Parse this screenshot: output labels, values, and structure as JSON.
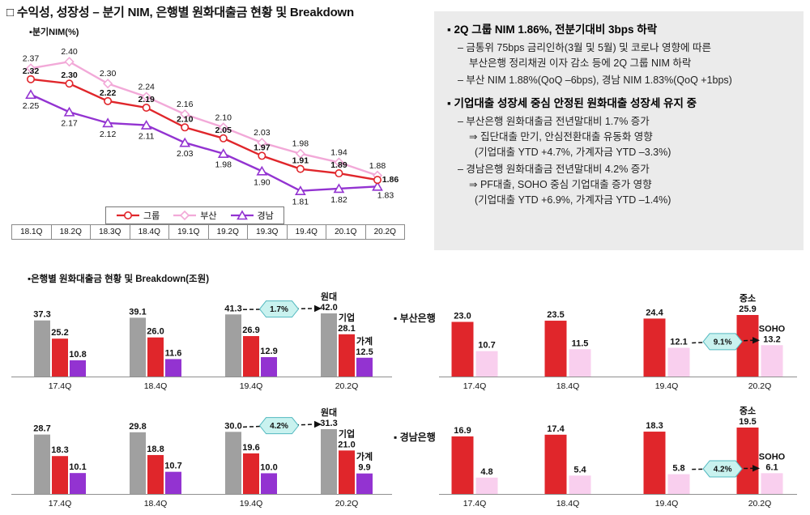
{
  "page": {
    "title": "□ 수익성, 성장성 – 분기 NIM, 은행별 원화대출금 현황 및 Breakdown",
    "loans_section_title": "▪은행별 원화대출금 현황 및 Breakdown(조원)",
    "busan_bank_label": "▪ 부산은행",
    "gyeongnam_bank_label": "▪ 경남은행"
  },
  "colors": {
    "group_red": "#e0262b",
    "busan_pink": "#f2a9d8",
    "gyeongnam_purple": "#9333d1",
    "total_gray": "#a0a0a0",
    "soho_pink": "#f9cfee",
    "panel_bg": "#ebebeb",
    "badge_fill": "#c9f2ef",
    "badge_border": "#53b9c0"
  },
  "commentary": {
    "lines": [
      "▪ 2Q 그룹 NIM 1.86%, 전분기대비 3bps 하락",
      "– 금통위 75bps 금리인하(3월 및 5월) 및 코로나 영향에 따른",
      "부산은행 정리채권 이자 감소 등에 2Q 그룹 NIM 하락",
      "– 부산 NIM 1.88%(QoQ –6bps), 경남 NIM 1.83%(QoQ +1bps)",
      "▪ 기업대출 성장세 중심 안정된 원화대출 성장세 유지 중",
      "– 부산은행 원화대출금 전년말대비 1.7% 증가",
      "⇒ 집단대출 만기, 안심전환대출 유동화 영향",
      "(기업대출 YTD +4.7%, 가계자금 YTD –3.3%)",
      "– 경남은행 원화대출금 전년말대비 4.2% 증가",
      "⇒ PF대출, SOHO 중심 기업대출 증가 영향",
      "(기업대출 YTD +6.9%, 가계자금 YTD –1.4%)"
    ]
  },
  "chart_data": [
    {
      "id": "nim-line-chart",
      "type": "line",
      "display_label": "▪분기NIM(%)",
      "categories": [
        "18.1Q",
        "18.2Q",
        "18.3Q",
        "18.4Q",
        "19.1Q",
        "19.2Q",
        "19.3Q",
        "19.4Q",
        "20.1Q",
        "20.2Q"
      ],
      "ylim": [
        1.72,
        2.46
      ],
      "grid": false,
      "legend_position": "bottom-center",
      "series": [
        {
          "name": "그룹",
          "key": "group",
          "marker": "circle",
          "color": "#e0262b",
          "values": [
            2.32,
            2.3,
            2.22,
            2.19,
            2.1,
            2.05,
            1.97,
            1.91,
            1.89,
            1.86
          ]
        },
        {
          "name": "부산",
          "key": "busan",
          "marker": "diamond",
          "color": "#f2a9d8",
          "values": [
            2.37,
            2.4,
            2.3,
            2.24,
            2.16,
            2.1,
            2.03,
            1.98,
            1.94,
            1.88
          ]
        },
        {
          "name": "경남",
          "key": "gyeongnam",
          "marker": "triangle",
          "color": "#9333d1",
          "values": [
            2.25,
            2.17,
            2.12,
            2.11,
            2.03,
            1.98,
            1.9,
            1.81,
            1.82,
            1.83
          ]
        }
      ]
    },
    {
      "id": "busan-loans-chart",
      "type": "bar",
      "unit": "조원",
      "categories": [
        "17.4Q",
        "18.4Q",
        "19.4Q",
        "20.2Q"
      ],
      "series": [
        {
          "name": "원대",
          "key": "total",
          "color": "#a0a0a0",
          "values": [
            37.3,
            39.1,
            41.3,
            42.0
          ]
        },
        {
          "name": "기업",
          "key": "corporate",
          "color": "#e0262b",
          "values": [
            25.2,
            26.0,
            26.9,
            28.1
          ]
        },
        {
          "name": "가계",
          "key": "household",
          "color": "#9333d1",
          "values": [
            10.8,
            11.6,
            12.9,
            12.5
          ]
        }
      ],
      "growth_label": "1.7%",
      "arrow": {
        "from": [
          0,
          2
        ],
        "to": [
          0,
          3
        ]
      }
    },
    {
      "id": "gyeongnam-loans-chart",
      "type": "bar",
      "unit": "조원",
      "categories": [
        "17.4Q",
        "18.4Q",
        "19.4Q",
        "20.2Q"
      ],
      "series": [
        {
          "name": "원대",
          "key": "total",
          "color": "#a0a0a0",
          "values": [
            28.7,
            29.8,
            30.0,
            31.3
          ]
        },
        {
          "name": "기업",
          "key": "corporate",
          "color": "#e0262b",
          "values": [
            18.3,
            18.8,
            19.6,
            21.0
          ]
        },
        {
          "name": "가계",
          "key": "household",
          "color": "#9333d1",
          "values": [
            10.1,
            10.7,
            10.0,
            9.9
          ]
        }
      ],
      "growth_label": "4.2%",
      "arrow": {
        "from": [
          0,
          2
        ],
        "to": [
          0,
          3
        ]
      }
    },
    {
      "id": "busan-sme-chart",
      "type": "bar",
      "categories": [
        "17.4Q",
        "18.4Q",
        "19.4Q",
        "20.2Q"
      ],
      "series": [
        {
          "name": "중소",
          "key": "sme",
          "color": "#e0262b",
          "values": [
            23.0,
            23.5,
            24.4,
            25.9
          ]
        },
        {
          "name": "SOHO",
          "key": "soho",
          "color": "#f9cfee",
          "values": [
            10.7,
            11.5,
            12.1,
            13.2
          ]
        }
      ],
      "growth_label": "9.1%",
      "arrow": {
        "from": [
          1,
          2
        ],
        "to": [
          1,
          3
        ]
      }
    },
    {
      "id": "gyeongnam-sme-chart",
      "type": "bar",
      "categories": [
        "17.4Q",
        "18.4Q",
        "19.4Q",
        "20.2Q"
      ],
      "series": [
        {
          "name": "중소",
          "key": "sme",
          "color": "#e0262b",
          "values": [
            16.9,
            17.4,
            18.3,
            19.5
          ]
        },
        {
          "name": "SOHO",
          "key": "soho",
          "color": "#f9cfee",
          "values": [
            4.8,
            5.4,
            5.8,
            6.1
          ]
        }
      ],
      "growth_label": "4.2%",
      "arrow": {
        "from": [
          1,
          2
        ],
        "to": [
          1,
          3
        ]
      }
    }
  ]
}
